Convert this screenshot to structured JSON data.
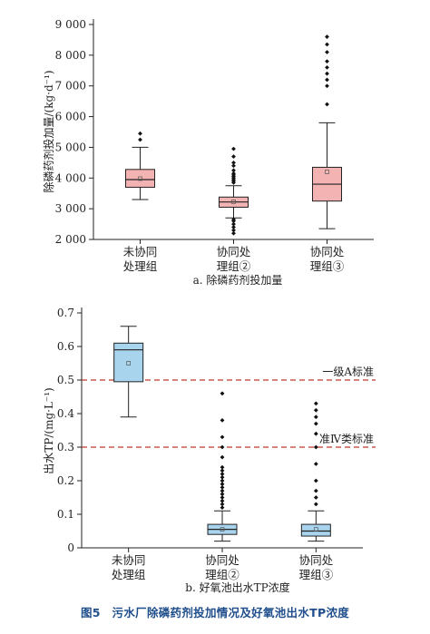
{
  "caption": "图5　污水厂除磷药剂投加情况及好氧池出水TP浓度",
  "chart_data": [
    {
      "type": "box",
      "subtitle": "a. 除磷药剂投加量",
      "ylabel": "除磷药剂投加量/(kg·d⁻¹)",
      "ylim": [
        2000,
        9000
      ],
      "yticks": [
        2000,
        3000,
        4000,
        5000,
        6000,
        7000,
        8000,
        9000
      ],
      "ytick_labels": [
        "2 000",
        "3 000",
        "4 000",
        "5 000",
        "6 000",
        "7 000",
        "8 000",
        "9 000"
      ],
      "box_color": "#f4b3b3",
      "categories": [
        [
          "未协同",
          "处理组"
        ],
        [
          "协同处",
          "理组②"
        ],
        [
          "协同处",
          "理组③"
        ]
      ],
      "boxes": [
        {
          "whisker_low": 3300,
          "q1": 3700,
          "median": 3950,
          "q3": 4280,
          "whisker_high": 5000,
          "mean": 3980,
          "outliers": [
            5250,
            5450
          ]
        },
        {
          "whisker_low": 2700,
          "q1": 3050,
          "median": 3220,
          "q3": 3380,
          "whisker_high": 3750,
          "mean": 3230,
          "outliers": [
            2200,
            2300,
            2400,
            2500,
            2600,
            2650,
            3850,
            3900,
            3950,
            4000,
            4050,
            4100,
            4150,
            4250,
            4400,
            4500,
            4700,
            4950
          ]
        },
        {
          "whisker_low": 2350,
          "q1": 3250,
          "median": 3800,
          "q3": 4350,
          "whisker_high": 5800,
          "mean": 4200,
          "outliers": [
            6400,
            7000,
            7200,
            7400,
            7600,
            7800,
            8100,
            8350,
            8600
          ]
        }
      ]
    },
    {
      "type": "box",
      "subtitle": "b. 好氧池出水TP浓度",
      "ylabel": "出水TP/(mg·L⁻¹)",
      "ylim": [
        0,
        0.7
      ],
      "yticks": [
        0,
        0.1,
        0.2,
        0.3,
        0.4,
        0.5,
        0.6,
        0.7
      ],
      "ytick_labels": [
        "0",
        "0.1",
        "0.2",
        "0.3",
        "0.4",
        "0.5",
        "0.6",
        "0.7"
      ],
      "box_color": "#a9d4ee",
      "categories": [
        [
          "未协同",
          "处理组"
        ],
        [
          "协同处",
          "理组②"
        ],
        [
          "协同处",
          "理组③"
        ]
      ],
      "boxes": [
        {
          "whisker_low": 0.39,
          "q1": 0.495,
          "median": 0.59,
          "q3": 0.61,
          "whisker_high": 0.66,
          "mean": 0.55,
          "outliers": []
        },
        {
          "whisker_low": 0.02,
          "q1": 0.04,
          "median": 0.055,
          "q3": 0.07,
          "whisker_high": 0.11,
          "mean": 0.055,
          "outliers": [
            0.12,
            0.13,
            0.14,
            0.15,
            0.16,
            0.17,
            0.18,
            0.19,
            0.2,
            0.21,
            0.22,
            0.23,
            0.24,
            0.27,
            0.3,
            0.33,
            0.38,
            0.46
          ]
        },
        {
          "whisker_low": 0.02,
          "q1": 0.035,
          "median": 0.05,
          "q3": 0.07,
          "whisker_high": 0.11,
          "mean": 0.055,
          "outliers": [
            0.13,
            0.15,
            0.17,
            0.2,
            0.25,
            0.3,
            0.34,
            0.37,
            0.39,
            0.41,
            0.43
          ]
        }
      ],
      "reference_lines": [
        {
          "value": 0.5,
          "label": "一级A标准",
          "color": "#c0392b"
        },
        {
          "value": 0.3,
          "label": "准Ⅳ类标准",
          "color": "#c0392b"
        }
      ]
    }
  ]
}
